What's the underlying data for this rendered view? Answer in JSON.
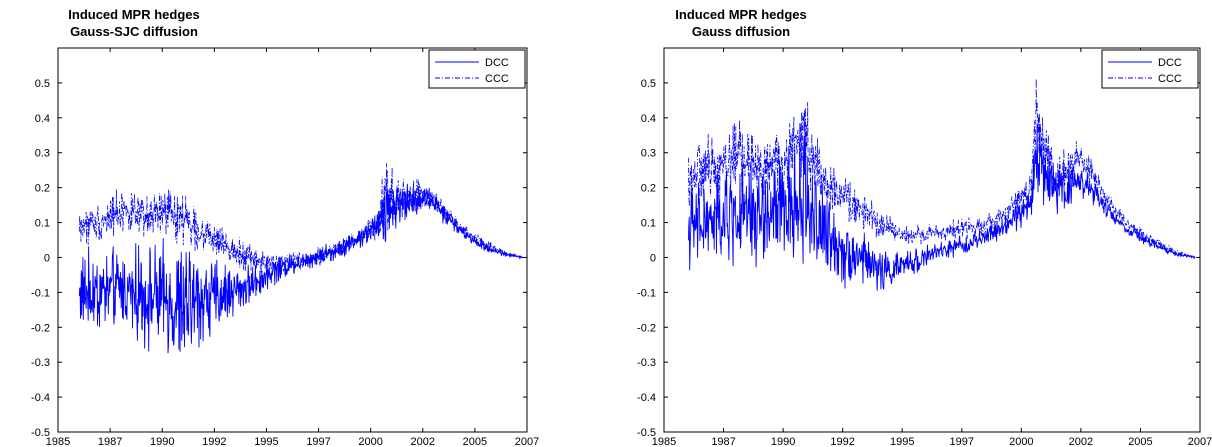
{
  "chart_data": [
    {
      "type": "line",
      "title": "Induced MPR hedges",
      "subtitle": "Gauss-SJC diffusion",
      "xlabel": "",
      "ylabel": "",
      "xlim": [
        1985,
        2007
      ],
      "ylim": [
        -0.5,
        0.6
      ],
      "x_ticks": [
        "1985",
        "1987",
        "1990",
        "1992",
        "1995",
        "1997",
        "2000",
        "2002",
        "2005",
        "2007"
      ],
      "y_ticks": [
        "-0.5",
        "-0.4",
        "-0.3",
        "-0.2",
        "-0.1",
        "0",
        "0.1",
        "0.2",
        "0.3",
        "0.4",
        "0.5"
      ],
      "legend_position": "top-right",
      "grid": false,
      "color": "#0000ff",
      "series": [
        {
          "name": "DCC",
          "style": "solid",
          "x": [
            1986.0,
            1987.0,
            1988.0,
            1989.0,
            1990.0,
            1990.8,
            1991.5,
            1992.0,
            1993.0,
            1994.0,
            1995.0,
            1996.0,
            1997.0,
            1998.0,
            1999.0,
            2000.0,
            2000.3,
            2001.0,
            2001.5,
            2002.0,
            2002.5,
            2003.0,
            2004.0,
            2005.0,
            2006.0,
            2006.8
          ],
          "values": [
            -0.1,
            -0.1,
            -0.09,
            -0.11,
            -0.12,
            -0.15,
            -0.12,
            -0.12,
            -0.1,
            -0.08,
            -0.04,
            -0.02,
            0.0,
            0.02,
            0.05,
            0.09,
            0.14,
            0.15,
            0.16,
            0.17,
            0.17,
            0.13,
            0.07,
            0.03,
            0.01,
            0.0
          ],
          "noise": [
            0.08,
            0.09,
            0.08,
            0.1,
            0.11,
            0.14,
            0.1,
            0.09,
            0.06,
            0.04,
            0.03,
            0.02,
            0.02,
            0.02,
            0.02,
            0.03,
            0.07,
            0.04,
            0.04,
            0.03,
            0.02,
            0.02,
            0.01,
            0.01,
            0.005,
            0.002
          ]
        },
        {
          "name": "CCC",
          "style": "dashdot",
          "x": [
            1986.0,
            1987.0,
            1988.0,
            1989.0,
            1990.0,
            1990.8,
            1991.5,
            1992.0,
            1993.0,
            1994.0,
            1995.0,
            1996.0,
            1997.0,
            1998.0,
            1999.0,
            2000.0,
            2000.3,
            2001.0,
            2001.5,
            2002.0,
            2002.5,
            2003.0,
            2004.0,
            2005.0,
            2006.0,
            2006.8
          ],
          "values": [
            0.09,
            0.1,
            0.14,
            0.11,
            0.13,
            0.12,
            0.08,
            0.06,
            0.03,
            0.0,
            -0.02,
            -0.01,
            0.0,
            0.02,
            0.05,
            0.09,
            0.16,
            0.17,
            0.17,
            0.18,
            0.17,
            0.14,
            0.08,
            0.04,
            0.01,
            0.0
          ],
          "noise": [
            0.04,
            0.04,
            0.05,
            0.04,
            0.05,
            0.06,
            0.04,
            0.03,
            0.03,
            0.03,
            0.02,
            0.02,
            0.02,
            0.02,
            0.02,
            0.03,
            0.08,
            0.04,
            0.04,
            0.03,
            0.02,
            0.02,
            0.01,
            0.01,
            0.005,
            0.002
          ]
        }
      ]
    },
    {
      "type": "line",
      "title": "Induced MPR hedges",
      "subtitle": "Gauss diffusion",
      "xlabel": "",
      "ylabel": "",
      "xlim": [
        1985,
        2007
      ],
      "ylim": [
        -0.5,
        0.6
      ],
      "x_ticks": [
        "1985",
        "1987",
        "1990",
        "1992",
        "1995",
        "1997",
        "2000",
        "2002",
        "2005",
        "2007"
      ],
      "y_ticks": [
        "-0.5",
        "-0.4",
        "-0.3",
        "-0.2",
        "-0.1",
        "0",
        "0.1",
        "0.2",
        "0.3",
        "0.4",
        "0.5"
      ],
      "legend_position": "top-right",
      "grid": false,
      "color": "#0000ff",
      "series": [
        {
          "name": "DCC",
          "style": "solid",
          "x": [
            1986.0,
            1987.0,
            1988.0,
            1989.0,
            1990.0,
            1990.8,
            1991.5,
            1992.0,
            1993.0,
            1994.0,
            1995.0,
            1996.0,
            1997.0,
            1998.0,
            1999.0,
            2000.0,
            2000.3,
            2001.0,
            2001.5,
            2002.0,
            2002.5,
            2003.0,
            2004.0,
            2005.0,
            2006.0,
            2006.8
          ],
          "values": [
            0.08,
            0.1,
            0.12,
            0.12,
            0.13,
            0.18,
            0.07,
            0.04,
            0.0,
            -0.04,
            -0.02,
            0.01,
            0.03,
            0.05,
            0.09,
            0.15,
            0.28,
            0.2,
            0.21,
            0.22,
            0.2,
            0.15,
            0.08,
            0.04,
            0.01,
            0.0
          ],
          "noise": [
            0.08,
            0.1,
            0.1,
            0.11,
            0.12,
            0.15,
            0.1,
            0.08,
            0.06,
            0.04,
            0.03,
            0.02,
            0.02,
            0.02,
            0.02,
            0.04,
            0.1,
            0.05,
            0.06,
            0.04,
            0.03,
            0.02,
            0.01,
            0.01,
            0.005,
            0.002
          ]
        },
        {
          "name": "CCC",
          "style": "dashdot",
          "x": [
            1986.0,
            1987.0,
            1988.0,
            1989.0,
            1990.0,
            1990.8,
            1991.5,
            1992.0,
            1993.0,
            1994.0,
            1995.0,
            1996.0,
            1997.0,
            1998.0,
            1999.0,
            2000.0,
            2000.3,
            2001.0,
            2001.5,
            2002.0,
            2002.5,
            2003.0,
            2004.0,
            2005.0,
            2006.0,
            2006.8
          ],
          "values": [
            0.23,
            0.26,
            0.3,
            0.25,
            0.28,
            0.35,
            0.23,
            0.19,
            0.14,
            0.09,
            0.06,
            0.07,
            0.08,
            0.09,
            0.12,
            0.2,
            0.4,
            0.22,
            0.25,
            0.28,
            0.25,
            0.18,
            0.1,
            0.05,
            0.015,
            0.0
          ],
          "noise": [
            0.06,
            0.07,
            0.08,
            0.06,
            0.07,
            0.1,
            0.06,
            0.05,
            0.04,
            0.03,
            0.02,
            0.02,
            0.02,
            0.02,
            0.02,
            0.04,
            0.1,
            0.05,
            0.05,
            0.04,
            0.03,
            0.02,
            0.01,
            0.01,
            0.005,
            0.002
          ]
        }
      ]
    }
  ]
}
